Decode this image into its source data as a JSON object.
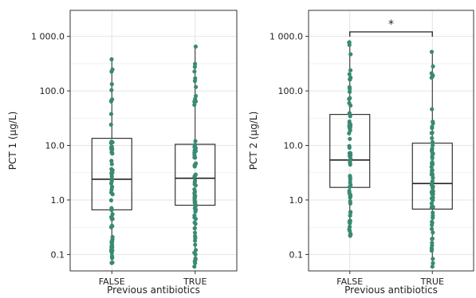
{
  "colors": {
    "points": "#3a8a73",
    "box_stroke": "#222222",
    "panel_border": "#333333",
    "grid_major": "#e4e4e4",
    "grid_minor": "#f1f1f1"
  },
  "chart_data": [
    {
      "type": "box",
      "ylabel": "PCT 1 (µg/L)",
      "xlabel": "Previous antibiotics",
      "yscale": "log",
      "ylim": [
        0.05,
        3000
      ],
      "yticks": [
        0.1,
        1,
        10,
        100,
        1000
      ],
      "ytick_labels": [
        "0.1",
        "1.0",
        "10.0",
        "100.0",
        "1 000.0"
      ],
      "grid": true,
      "categories": [
        "FALSE",
        "TRUE"
      ],
      "boxes": [
        {
          "name": "FALSE",
          "q1": 0.66,
          "median": 2.4,
          "q3": 13.5,
          "min": 0.07,
          "max": 380
        },
        {
          "name": "TRUE",
          "q1": 0.8,
          "median": 2.5,
          "q3": 10.5,
          "min": 0.06,
          "max": 650
        }
      ],
      "significance": null
    },
    {
      "type": "box",
      "ylabel": "PCT 2 (µg/L)",
      "xlabel": "Previous antibiotics",
      "yscale": "log",
      "ylim": [
        0.05,
        3000
      ],
      "yticks": [
        0.1,
        1,
        10,
        100,
        1000
      ],
      "ytick_labels": [
        "0.1",
        "1.0",
        "10.0",
        "100.0",
        "1 000.0"
      ],
      "grid": true,
      "categories": [
        "FALSE",
        "TRUE"
      ],
      "boxes": [
        {
          "name": "FALSE",
          "q1": 1.7,
          "median": 5.4,
          "q3": 37,
          "min": 0.22,
          "max": 780
        },
        {
          "name": "TRUE",
          "q1": 0.68,
          "median": 2.0,
          "q3": 11,
          "min": 0.06,
          "max": 520
        }
      ],
      "significance": {
        "between": [
          "FALSE",
          "TRUE"
        ],
        "label": "*"
      }
    }
  ]
}
